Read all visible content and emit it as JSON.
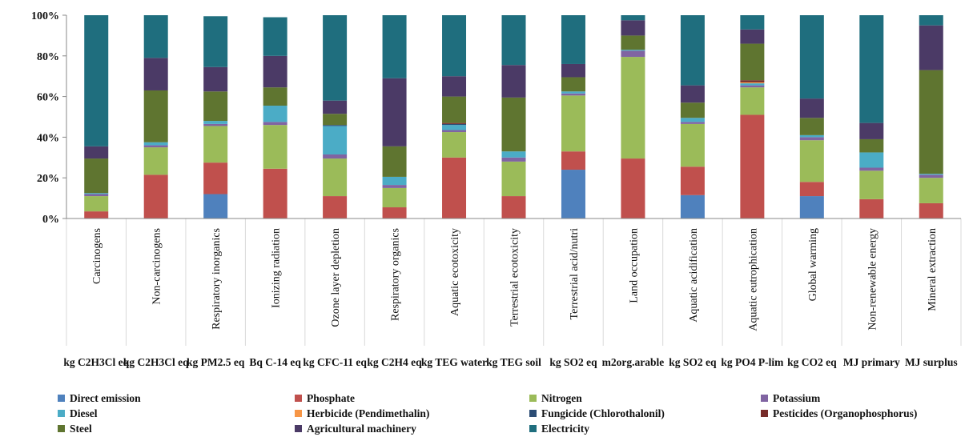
{
  "chart_data": {
    "type": "bar",
    "stacked": true,
    "percent_stacked": true,
    "ylim": [
      0,
      100
    ],
    "yticks": [
      "0%",
      "20%",
      "40%",
      "60%",
      "80%",
      "100%"
    ],
    "categories": [
      "Carcinogens",
      "Non-carcinogens",
      "Respiratory inorganics",
      "Ionizing radiation",
      "Ozone layer depletion",
      "Respiratory organics",
      "Aquatic ecotoxicity",
      "Terrestrial ecotoxicity",
      "Terrestrial acid/nutri",
      "Land occupation",
      "Aquatic acidification",
      "Aquatic eutrophication",
      "Global warming",
      "Non-renewable energy",
      "Mineral extraction"
    ],
    "units": [
      "kg C2H3Cl eq",
      "kg C2H3Cl eq",
      "kg PM2.5 eq",
      "Bq C-14 eq",
      "kg CFC-11 eq",
      "kg C2H4 eq",
      "kg TEG water",
      "kg TEG soil",
      "kg SO2 eq",
      "m2org.arable",
      "kg SO2 eq",
      "kg PO4 P-lim",
      "kg CO2 eq",
      "MJ primary",
      "MJ surplus"
    ],
    "legend_position": "bottom",
    "series": [
      {
        "name": "Direct emission",
        "color": "#4f81bd",
        "values": [
          0,
          0,
          12,
          0,
          0,
          0,
          0,
          0,
          24,
          0,
          11.5,
          0,
          11,
          0,
          0
        ]
      },
      {
        "name": "Phosphate",
        "color": "#c0504d",
        "values": [
          3.5,
          21.5,
          15.5,
          24.5,
          11,
          5.5,
          30,
          11,
          9,
          29.5,
          14,
          51,
          7,
          9.5,
          7.5
        ]
      },
      {
        "name": "Nitrogen",
        "color": "#9bbb59",
        "values": [
          7.5,
          13.5,
          18,
          21.5,
          18.5,
          9.5,
          12.5,
          17,
          27.5,
          50,
          21,
          13.5,
          20.5,
          14,
          12.5
        ]
      },
      {
        "name": "Potassium",
        "color": "#8064a2",
        "values": [
          1,
          1,
          1,
          1.5,
          2,
          1.5,
          1,
          2,
          1,
          3,
          1,
          1,
          1.5,
          1.5,
          1.5
        ]
      },
      {
        "name": "Diesel",
        "color": "#4bacc6",
        "values": [
          0.5,
          1.5,
          1.5,
          8,
          14,
          4,
          2.5,
          3,
          1,
          0.5,
          2,
          1,
          1,
          7.5,
          0.5
        ]
      },
      {
        "name": "Herbicide (Pendimethalin)",
        "color": "#f79646",
        "values": [
          0,
          0,
          0,
          0,
          0,
          0,
          0,
          0,
          0,
          0,
          0,
          0.5,
          0,
          0,
          0
        ]
      },
      {
        "name": "Fungicide (Chlorothalonil)",
        "color": "#2c4d75",
        "values": [
          0,
          0,
          0,
          0,
          0.5,
          0,
          0.5,
          0,
          0,
          0,
          0,
          0,
          0,
          0,
          0
        ]
      },
      {
        "name": "Pesticides (Organophosphorus)",
        "color": "#772c2a",
        "values": [
          0,
          0,
          0,
          0,
          0,
          0,
          0.5,
          0,
          0,
          0,
          0,
          1,
          0,
          0,
          0
        ]
      },
      {
        "name": "Steel",
        "color": "#5f7530",
        "values": [
          17,
          25.5,
          14.5,
          9,
          5.5,
          15,
          13,
          26.5,
          7,
          7,
          7.5,
          18,
          8.5,
          6.5,
          51
        ]
      },
      {
        "name": "Agricultural machinery",
        "color": "#4b3a66",
        "values": [
          6,
          16,
          12,
          15.5,
          6.5,
          33.5,
          10,
          16,
          6.5,
          7.5,
          8.5,
          7,
          9.5,
          8,
          22
        ]
      },
      {
        "name": "Electricity",
        "color": "#1f6e7e",
        "values": [
          64.5,
          21,
          25,
          19,
          42,
          31,
          30,
          24.5,
          24,
          2.5,
          34.5,
          7,
          41,
          53,
          5
        ]
      }
    ]
  }
}
